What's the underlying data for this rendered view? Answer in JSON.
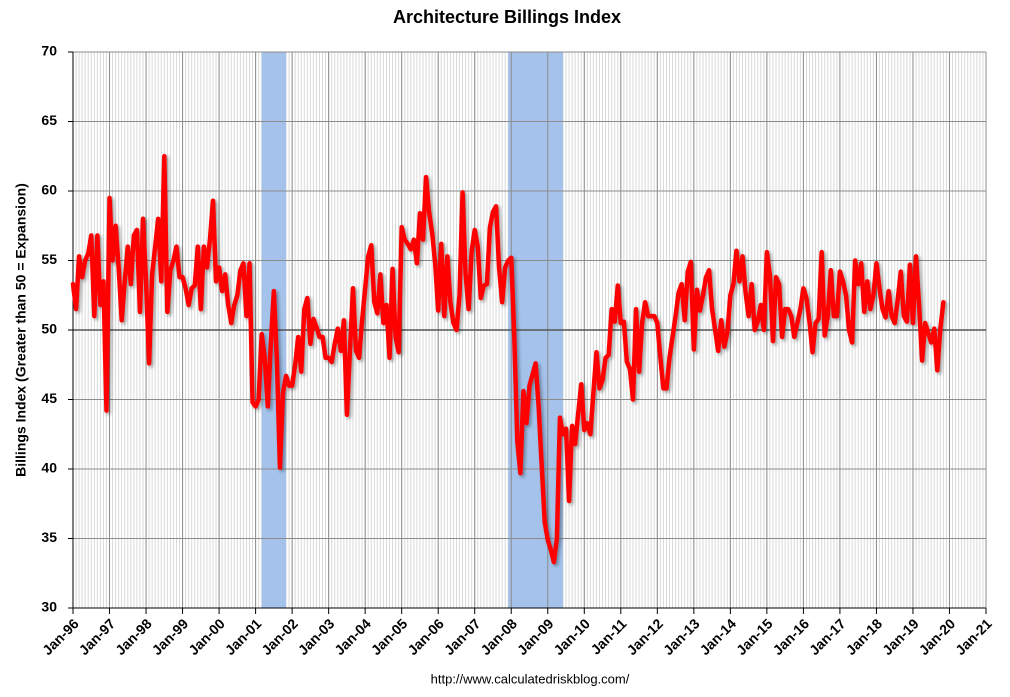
{
  "chart_data": {
    "type": "line",
    "title": "Architecture Billings Index",
    "y_label": "Billings Index (Greater than 50 = Expansion)",
    "source": "http://www.calculatedriskblog.com/",
    "xlim": [
      0,
      300
    ],
    "xticks": [
      {
        "value": 0,
        "label": "Jan-96"
      },
      {
        "value": 12,
        "label": "Jan-97"
      },
      {
        "value": 24,
        "label": "Jan-98"
      },
      {
        "value": 36,
        "label": "Jan-99"
      },
      {
        "value": 48,
        "label": "Jan-00"
      },
      {
        "value": 60,
        "label": "Jan-01"
      },
      {
        "value": 72,
        "label": "Jan-02"
      },
      {
        "value": 84,
        "label": "Jan-03"
      },
      {
        "value": 96,
        "label": "Jan-04"
      },
      {
        "value": 108,
        "label": "Jan-05"
      },
      {
        "value": 120,
        "label": "Jan-06"
      },
      {
        "value": 132,
        "label": "Jan-07"
      },
      {
        "value": 144,
        "label": "Jan-08"
      },
      {
        "value": 156,
        "label": "Jan-09"
      },
      {
        "value": 168,
        "label": "Jan-10"
      },
      {
        "value": 180,
        "label": "Jan-11"
      },
      {
        "value": 192,
        "label": "Jan-12"
      },
      {
        "value": 204,
        "label": "Jan-13"
      },
      {
        "value": 216,
        "label": "Jan-14"
      },
      {
        "value": 228,
        "label": "Jan-15"
      },
      {
        "value": 240,
        "label": "Jan-16"
      },
      {
        "value": 252,
        "label": "Jan-17"
      },
      {
        "value": 264,
        "label": "Jan-18"
      },
      {
        "value": 276,
        "label": "Jan-19"
      },
      {
        "value": 288,
        "label": "Jan-20"
      },
      {
        "value": 300,
        "label": "Jan-21"
      }
    ],
    "ylim": [
      30,
      70
    ],
    "yticks": [
      30,
      35,
      40,
      45,
      50,
      55,
      60,
      65,
      70
    ],
    "grid": true,
    "reference_line": 50,
    "shaded_x": [
      [
        62,
        70
      ],
      [
        143,
        161
      ]
    ],
    "shade_color": "#a4c2ea",
    "x": [
      0,
      1,
      2,
      3,
      4,
      5,
      6,
      7,
      8,
      9,
      10,
      11,
      12,
      13,
      14,
      15,
      16,
      17,
      18,
      19,
      20,
      21,
      22,
      23,
      24,
      25,
      26,
      27,
      28,
      29,
      30,
      31,
      32,
      33,
      34,
      35,
      36,
      37,
      38,
      39,
      40,
      41,
      42,
      43,
      44,
      45,
      46,
      47,
      48,
      49,
      50,
      51,
      52,
      53,
      54,
      55,
      56,
      57,
      58,
      59,
      60,
      61,
      62,
      63,
      64,
      65,
      66,
      67,
      68,
      69,
      70,
      71,
      72,
      73,
      74,
      75,
      76,
      77,
      78,
      79,
      80,
      81,
      82,
      83,
      84,
      85,
      86,
      87,
      88,
      89,
      90,
      91,
      92,
      93,
      94,
      95,
      96,
      97,
      98,
      99,
      100,
      101,
      102,
      103,
      104,
      105,
      106,
      107,
      108,
      109,
      110,
      111,
      112,
      113,
      114,
      115,
      116,
      117,
      118,
      119,
      120,
      121,
      122,
      123,
      124,
      125,
      126,
      127,
      128,
      129,
      130,
      131,
      132,
      133,
      134,
      135,
      136,
      137,
      138,
      139,
      140,
      141,
      142,
      143,
      144,
      145,
      146,
      147,
      148,
      149,
      150,
      151,
      152,
      153,
      154,
      155,
      156,
      157,
      158,
      159,
      160,
      161,
      162,
      163,
      164,
      165,
      166,
      167,
      168,
      169,
      170,
      171,
      172,
      173,
      174,
      175,
      176,
      177,
      178,
      179,
      180,
      181,
      182,
      183,
      184,
      185,
      186,
      187,
      188,
      189,
      190,
      191,
      192,
      193,
      194,
      195,
      196,
      197,
      198,
      199,
      200,
      201,
      202,
      203,
      204,
      205,
      206,
      207,
      208,
      209,
      210,
      211,
      212,
      213,
      214,
      215,
      216,
      217,
      218,
      219,
      220,
      221,
      222,
      223,
      224,
      225,
      226,
      227,
      228,
      229,
      230,
      231,
      232,
      233,
      234,
      235,
      236,
      237,
      238,
      239,
      240,
      241,
      242,
      243,
      244,
      245,
      246,
      247,
      248,
      249,
      250,
      251,
      252,
      253,
      254,
      255,
      256,
      257,
      258,
      259,
      260,
      261,
      262,
      263,
      264,
      265,
      266,
      267,
      268,
      269,
      270,
      271,
      272,
      273,
      274,
      275,
      276,
      277,
      278,
      279,
      280,
      281,
      282,
      283,
      284,
      285,
      286
    ],
    "series": [
      {
        "color": "#ff0000",
        "values": [
          53.3,
          51.5,
          55.3,
          53.8,
          55,
          55.5,
          56.8,
          51,
          56.8,
          51.8,
          53.5,
          44.2,
          59.5,
          55,
          57.5,
          54.5,
          50.7,
          53.5,
          56,
          53.3,
          56.8,
          57.2,
          51.3,
          58,
          53.5,
          47.6,
          54,
          56,
          58,
          53.5,
          62.5,
          51.3,
          54.3,
          55,
          56,
          53.8,
          53.8,
          53,
          51.8,
          53,
          53.2,
          56,
          51.5,
          56,
          54.5,
          56.5,
          59.3,
          53.5,
          54.5,
          52.8,
          54,
          51.8,
          50.5,
          51.8,
          52.5,
          54.3,
          54.8,
          51,
          54.8,
          44.8,
          44.5,
          45,
          49.7,
          48,
          44.5,
          49,
          52.8,
          47.8,
          40.1,
          45.5,
          46.7,
          46,
          46,
          47.5,
          49.5,
          47,
          51.5,
          52.3,
          49,
          50.8,
          50.2,
          49.5,
          49.5,
          48,
          48,
          47.7,
          49,
          50.1,
          48.5,
          50.7,
          43.9,
          48.5,
          53,
          48.5,
          48,
          50.7,
          53,
          55.3,
          56.1,
          52,
          51.2,
          54,
          50.5,
          51.8,
          48,
          54.4,
          49.5,
          48.4,
          57.4,
          56.5,
          56.2,
          55.8,
          56.5,
          54.8,
          58.4,
          56.5,
          61,
          58.5,
          57,
          54.8,
          51.4,
          56.2,
          51,
          55.3,
          52,
          50.5,
          50,
          52.5,
          59.9,
          54,
          51.5,
          55.7,
          57.2,
          56,
          52.3,
          53.2,
          53.3,
          57.4,
          58.5,
          58.9,
          54.5,
          52,
          54.5,
          55,
          55.2,
          49.5,
          42,
          39.7,
          45.6,
          43.3,
          46,
          46.8,
          47.6,
          44.5,
          40.3,
          36.2,
          34.9,
          34.2,
          33.3,
          35,
          43.7,
          42.5,
          42.9,
          37.7,
          43.1,
          41.8,
          44,
          46.1,
          42.8,
          43.3,
          42.5,
          45.5,
          48.4,
          45.8,
          46.4,
          48,
          48.2,
          51.5,
          50.6,
          53.2,
          50.5,
          50.6,
          47.7,
          47.2,
          45,
          51.5,
          47,
          50.5,
          52,
          51,
          51,
          51,
          50.5,
          48,
          45.8,
          45.8,
          48,
          49.5,
          51,
          52.7,
          53.3,
          50.7,
          54.2,
          54.9,
          48.6,
          52.9,
          51.4,
          52.5,
          53.8,
          54.3,
          51.5,
          50,
          48.5,
          50.7,
          48.8,
          49.8,
          52.5,
          53.3,
          55.7,
          53.5,
          55.3,
          52.7,
          51,
          53.3,
          50,
          50.6,
          51.8,
          50,
          55.6,
          53.9,
          49.2,
          53.8,
          53.3,
          49.5,
          51.5,
          51.5,
          51,
          49.5,
          50.5,
          51.5,
          53,
          52.3,
          50.6,
          48.4,
          50.5,
          50.8,
          55.6,
          49.6,
          51,
          54.3,
          51,
          51,
          54.2,
          53.5,
          52.5,
          50,
          49.1,
          55,
          53.3,
          54.8,
          51.3,
          53.5,
          51.5,
          52.5,
          54.8,
          53,
          51.5,
          50.9,
          52.8,
          51,
          50.5,
          52.2,
          54.2,
          51,
          50.6,
          54.7,
          50.5,
          55.3,
          51.8,
          47.8,
          50.5,
          49.8,
          49.1,
          50.1,
          47.1,
          50.1,
          52
        ]
      }
    ]
  }
}
